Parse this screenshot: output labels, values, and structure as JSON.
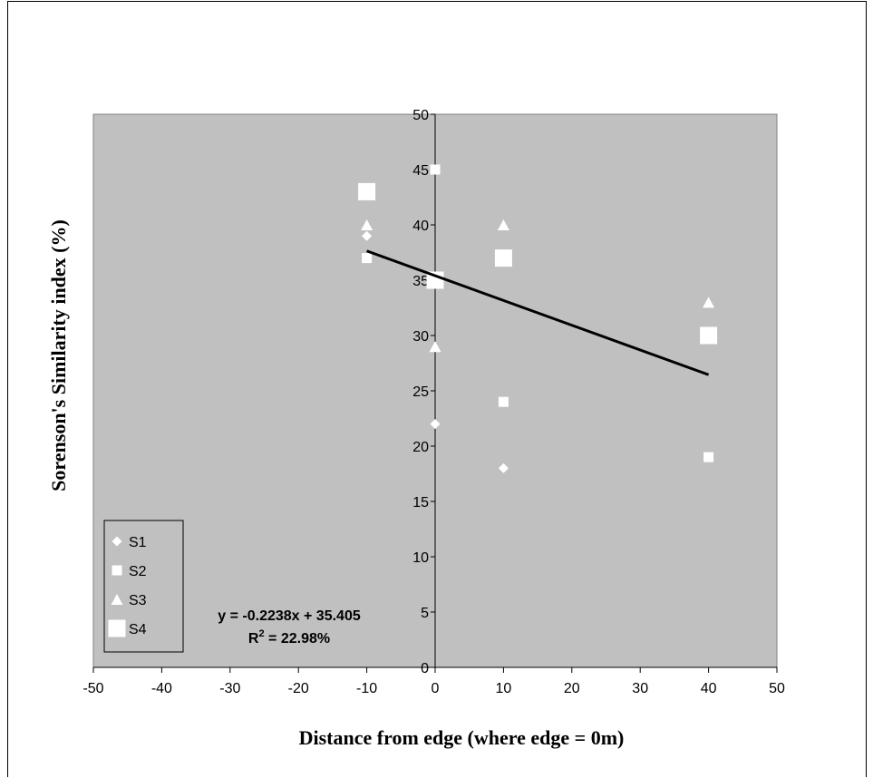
{
  "chart_data": {
    "type": "scatter",
    "xlabel": "Distance from edge (where edge = 0m)",
    "ylabel": "Sorenson's Similarity index (%)",
    "xlim": [
      -50,
      50
    ],
    "ylim": [
      0,
      50
    ],
    "xticks": [
      -50,
      -40,
      -30,
      -20,
      -10,
      0,
      10,
      20,
      30,
      40,
      50
    ],
    "yticks": [
      0,
      5,
      10,
      15,
      20,
      25,
      30,
      35,
      40,
      45,
      50
    ],
    "grid": false,
    "legend_position": "bottom-left",
    "plot_background": "#c0c0c0",
    "marker_color": "#ffffff",
    "series": [
      {
        "name": "S1",
        "marker": "diamond",
        "points": [
          [
            -10,
            39
          ],
          [
            0,
            22
          ],
          [
            10,
            18
          ]
        ]
      },
      {
        "name": "S2",
        "marker": "square",
        "points": [
          [
            -10,
            37
          ],
          [
            0,
            45
          ],
          [
            10,
            24
          ],
          [
            40,
            19
          ]
        ]
      },
      {
        "name": "S3",
        "marker": "triangle",
        "points": [
          [
            -10,
            40
          ],
          [
            0,
            29
          ],
          [
            10,
            40
          ],
          [
            40,
            33
          ]
        ]
      },
      {
        "name": "S4",
        "marker": "square-large",
        "points": [
          [
            -10,
            43
          ],
          [
            0,
            35
          ],
          [
            10,
            37
          ],
          [
            40,
            30
          ]
        ]
      }
    ],
    "trendline": {
      "slope": -0.2238,
      "intercept": 35.405,
      "x_range": [
        -10,
        40
      ],
      "color": "#000000",
      "equation_label": "y = -0.2238x + 35.405",
      "r2_label": "R² = 22.98%"
    }
  }
}
